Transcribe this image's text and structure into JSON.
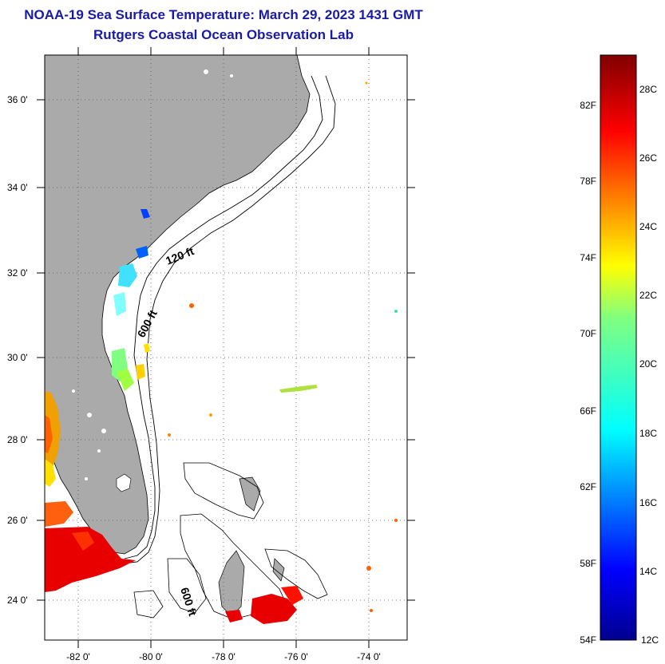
{
  "title": "NOAA-19 Sea Surface Temperature:  March 29, 2023 1431 GMT",
  "subtitle": "Rutgers Coastal Ocean Observation Lab",
  "map": {
    "lat_labels": [
      "36 0'",
      "34 0'",
      "32 0'",
      "30 0'",
      "28 0'",
      "26 0'",
      "24 0'"
    ],
    "lon_labels": [
      "-82 0'",
      "-80 0'",
      "-78 0'",
      "-76 0'",
      "-74 0'"
    ],
    "contour_labels": [
      "120 ft",
      "600 ft",
      "600 ft"
    ],
    "colors": {
      "land": "#aaaaaa",
      "ocean": "#ffffff",
      "grid": "#555555"
    }
  },
  "colorbar": {
    "f_labels": [
      "82F",
      "78F",
      "74F",
      "70F",
      "66F",
      "62F",
      "58F",
      "54F"
    ],
    "c_labels": [
      "28C",
      "26C",
      "24C",
      "22C",
      "20C",
      "18C",
      "16C",
      "14C",
      "12C"
    ],
    "min_c": 12,
    "max_c": 29
  }
}
